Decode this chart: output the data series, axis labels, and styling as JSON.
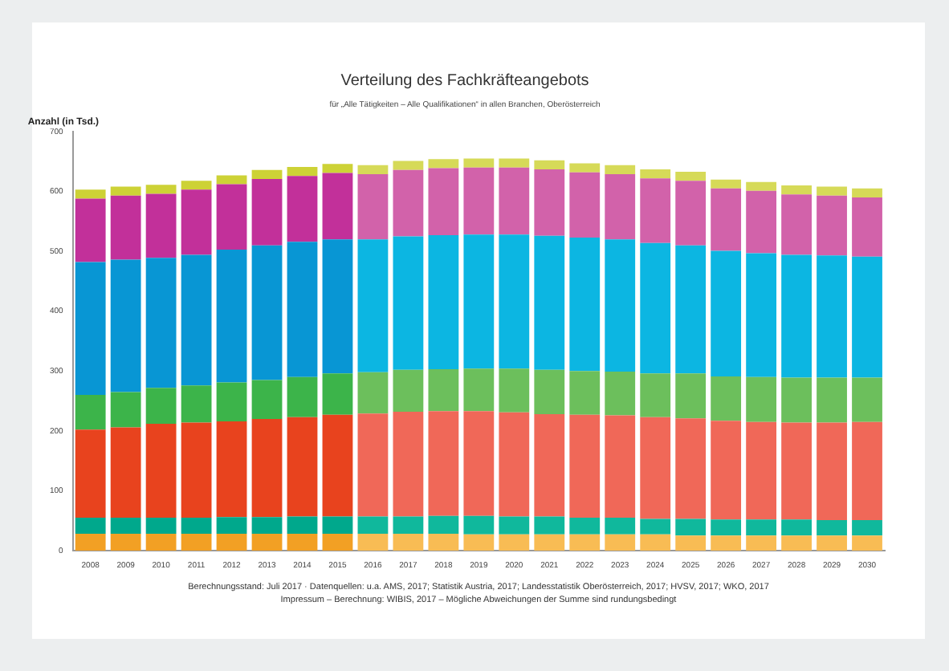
{
  "chart_data": {
    "type": "bar",
    "stacked": true,
    "title": "Verteilung des Fachkräfteangebots",
    "subtitle": "für „Alle Tätigkeiten – Alle Qualifikationen“ in allen Branchen, Oberösterreich",
    "ylabel": "Anzahl (in Tsd.)",
    "categories": [
      "2008",
      "2009",
      "2010",
      "2011",
      "2012",
      "2013",
      "2014",
      "2015",
      "2016",
      "2017",
      "2018",
      "2019",
      "2020",
      "2021",
      "2022",
      "2023",
      "2024",
      "2025",
      "2026",
      "2027",
      "2028",
      "2029",
      "2030"
    ],
    "series": [
      {
        "colors": [
          "#f2a024",
          "#f2a024",
          "#f2a024",
          "#f2a024",
          "#f2a024",
          "#f2a024",
          "#f2a024",
          "#f2a024",
          "#f8bc54",
          "#f8bc54",
          "#f8bc54",
          "#f8bc54",
          "#f8bc54",
          "#f8bc54",
          "#f8bc54",
          "#f8bc54",
          "#f8bc54",
          "#f8bc54",
          "#f8bc54",
          "#f8bc54",
          "#f8bc54",
          "#f8bc54",
          "#f8bc54"
        ],
        "values": [
          28,
          28,
          28,
          28,
          28,
          28,
          28,
          28,
          28,
          28,
          28,
          27,
          27,
          27,
          27,
          27,
          27,
          25,
          25,
          25,
          25,
          25,
          25
        ]
      },
      {
        "colors": [
          "#00a88c",
          "#00a88c",
          "#00a88c",
          "#00a88c",
          "#00a88c",
          "#00a88c",
          "#00a88c",
          "#00a88c",
          "#10b89c",
          "#10b89c",
          "#10b89c",
          "#10b89c",
          "#10b89c",
          "#10b89c",
          "#10b89c",
          "#10b89c",
          "#10b89c",
          "#10b89c",
          "#10b89c",
          "#10b89c",
          "#10b89c",
          "#10b89c",
          "#10b89c"
        ],
        "values": [
          27,
          27,
          27,
          27,
          28,
          28,
          29,
          29,
          29,
          29,
          30,
          31,
          30,
          30,
          28,
          28,
          26,
          28,
          27,
          27,
          27,
          26,
          26
        ]
      },
      {
        "colors": [
          "#e8431e",
          "#e8431e",
          "#e8431e",
          "#e8431e",
          "#e8431e",
          "#e8431e",
          "#e8431e",
          "#e8431e",
          "#f06858",
          "#f06858",
          "#f06858",
          "#f06858",
          "#f06858",
          "#f06858",
          "#f06858",
          "#f06858",
          "#f06858",
          "#f06858",
          "#f06858",
          "#f06858",
          "#f06858",
          "#f06858",
          "#f06858"
        ],
        "values": [
          147,
          151,
          157,
          159,
          160,
          164,
          166,
          170,
          172,
          175,
          175,
          175,
          174,
          171,
          172,
          171,
          170,
          168,
          165,
          163,
          162,
          163,
          164
        ]
      },
      {
        "colors": [
          "#3cb44a",
          "#3cb44a",
          "#3cb44a",
          "#3cb44a",
          "#3cb44a",
          "#3cb44a",
          "#3cb44a",
          "#3cb44a",
          "#6cbf5c",
          "#6cbf5c",
          "#6cbf5c",
          "#6cbf5c",
          "#6cbf5c",
          "#6cbf5c",
          "#6cbf5c",
          "#6cbf5c",
          "#6cbf5c",
          "#6cbf5c",
          "#6cbf5c",
          "#6cbf5c",
          "#6cbf5c",
          "#6cbf5c",
          "#6cbf5c"
        ],
        "values": [
          58,
          59,
          60,
          62,
          65,
          65,
          67,
          69,
          69,
          70,
          70,
          71,
          73,
          74,
          73,
          73,
          73,
          75,
          74,
          75,
          75,
          75,
          74
        ]
      },
      {
        "colors": [
          "#0896d4",
          "#0896d4",
          "#0896d4",
          "#0896d4",
          "#0896d4",
          "#0896d4",
          "#0896d4",
          "#0896d4",
          "#0cb6e2",
          "#0cb6e2",
          "#0cb6e2",
          "#0cb6e2",
          "#0cb6e2",
          "#0cb6e2",
          "#0cb6e2",
          "#0cb6e2",
          "#0cb6e2",
          "#0cb6e2",
          "#0cb6e2",
          "#0cb6e2",
          "#0cb6e2",
          "#0cb6e2",
          "#0cb6e2"
        ],
        "values": [
          222,
          221,
          217,
          218,
          222,
          225,
          226,
          224,
          222,
          223,
          224,
          224,
          224,
          224,
          223,
          221,
          218,
          214,
          210,
          207,
          205,
          204,
          202
        ]
      },
      {
        "colors": [
          "#c2309a",
          "#c2309a",
          "#c2309a",
          "#c2309a",
          "#c2309a",
          "#c2309a",
          "#c2309a",
          "#c2309a",
          "#d262aa",
          "#d262aa",
          "#d262aa",
          "#d262aa",
          "#d262aa",
          "#d262aa",
          "#d262aa",
          "#d262aa",
          "#d262aa",
          "#d262aa",
          "#d262aa",
          "#d262aa",
          "#d262aa",
          "#d262aa",
          "#d262aa"
        ],
        "values": [
          106,
          107,
          107,
          109,
          109,
          111,
          110,
          111,
          109,
          111,
          112,
          112,
          112,
          111,
          109,
          109,
          108,
          108,
          104,
          104,
          101,
          100,
          99
        ]
      },
      {
        "colors": [
          "#cdd236",
          "#cdd236",
          "#cdd236",
          "#cdd236",
          "#cdd236",
          "#cdd236",
          "#cdd236",
          "#cdd236",
          "#d6da58",
          "#d6da58",
          "#d6da58",
          "#d6da58",
          "#d6da58",
          "#d6da58",
          "#d6da58",
          "#d6da58",
          "#d6da58",
          "#d6da58",
          "#d6da58",
          "#d6da58",
          "#d6da58",
          "#d6da58",
          "#d6da58"
        ],
        "values": [
          15,
          15,
          15,
          15,
          15,
          15,
          15,
          15,
          15,
          15,
          15,
          15,
          15,
          15,
          15,
          15,
          15,
          15,
          15,
          15,
          15,
          15,
          15
        ]
      }
    ],
    "ylim": [
      0,
      700
    ],
    "yticks": [
      0,
      100,
      200,
      300,
      400,
      500,
      600,
      700
    ],
    "grid": false,
    "legend": false,
    "annotations": [
      "Berechnungsstand: Juli 2017 · Datenquellen: u.a. AMS, 2017; Statistik Austria, 2017; Landesstatistik Oberösterreich, 2017; HVSV, 2017; WKO, 2017",
      "Impressum – Berechnung: WIBIS, 2017 – Mögliche Abweichungen der Summe sind rundungsbedingt"
    ]
  }
}
